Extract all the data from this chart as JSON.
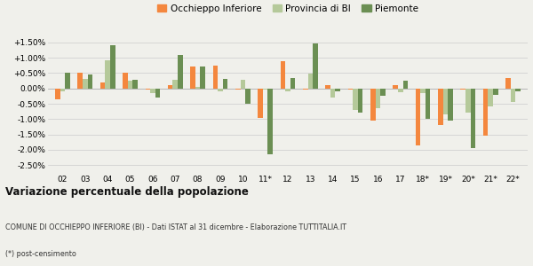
{
  "years": [
    "02",
    "03",
    "04",
    "05",
    "06",
    "07",
    "08",
    "09",
    "10",
    "11*",
    "12",
    "13",
    "14",
    "15",
    "16",
    "17",
    "18*",
    "19*",
    "20*",
    "21*",
    "22*"
  ],
  "occhieppo": [
    -0.35,
    0.5,
    0.2,
    0.52,
    -0.05,
    0.1,
    0.7,
    0.75,
    -0.05,
    -0.95,
    0.88,
    -0.05,
    0.12,
    -0.05,
    -1.05,
    0.1,
    -1.85,
    -1.2,
    -0.05,
    -1.55,
    0.35
  ],
  "provincia": [
    -0.1,
    0.3,
    0.9,
    0.25,
    -0.15,
    0.28,
    0.05,
    -0.1,
    0.28,
    -0.05,
    -0.1,
    0.48,
    -0.3,
    -0.7,
    -0.65,
    -0.12,
    -0.15,
    -0.85,
    -0.8,
    -0.6,
    -0.45
  ],
  "piemonte": [
    0.52,
    0.45,
    1.4,
    0.27,
    -0.3,
    1.1,
    0.72,
    0.32,
    -0.5,
    -2.15,
    0.35,
    1.45,
    -0.1,
    -0.8,
    -0.25,
    0.25,
    -1.0,
    -1.05,
    -1.95,
    -0.2,
    -0.1
  ],
  "color_occhieppo": "#f4873e",
  "color_provincia": "#b5c99a",
  "color_piemonte": "#6b8f53",
  "title": "Variazione percentuale della popolazione",
  "subtitle": "COMUNE DI OCCHIEPPO INFERIORE (BI) - Dati ISTAT al 31 dicembre - Elaborazione TUTTITALIA.IT",
  "footnote": "(*) post-censimento",
  "bg_color": "#f0f0eb",
  "ylim": [
    -2.75,
    1.75
  ],
  "yticks": [
    -2.5,
    -2.0,
    -1.5,
    -1.0,
    -0.5,
    0.0,
    0.5,
    1.0,
    1.5
  ],
  "ytick_labels": [
    "-2.50%",
    "-2.00%",
    "-1.50%",
    "-1.00%",
    "-0.50%",
    "0.00%",
    "+0.50%",
    "+1.00%",
    "+1.50%"
  ]
}
